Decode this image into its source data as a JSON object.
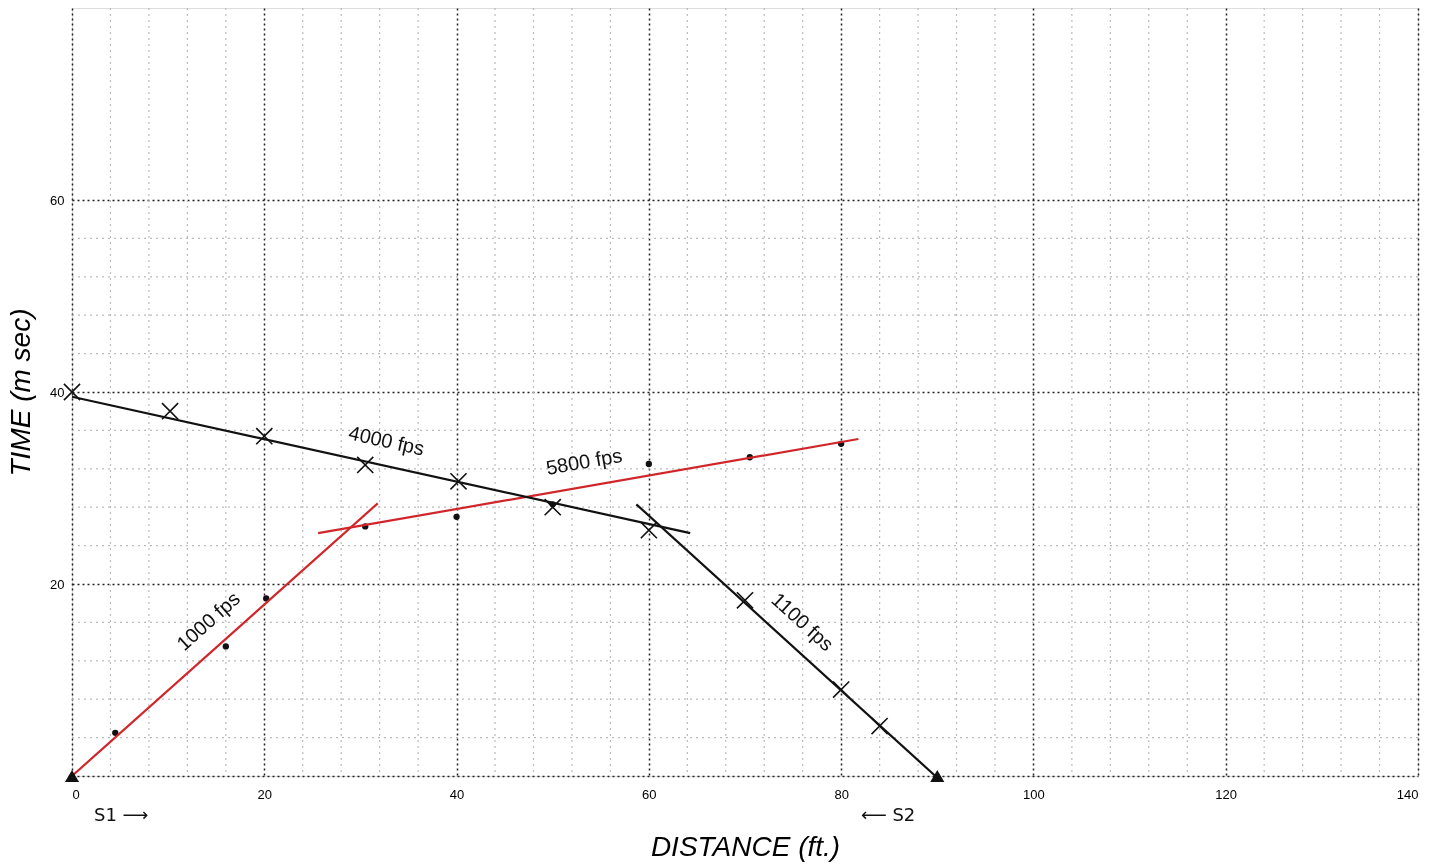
{
  "chart_data": {
    "type": "scatter",
    "xlabel": "DISTANCE (ft.)",
    "ylabel": "TIME (m sec)",
    "xlim": [
      0,
      140
    ],
    "ylim": [
      0,
      80
    ],
    "xticks": [
      0,
      20,
      40,
      60,
      80,
      100,
      120,
      140
    ],
    "yticks": [
      {
        "value": 0,
        "label": null
      },
      20,
      40,
      60
    ],
    "grid": true,
    "series": [
      {
        "marker": "cross",
        "color": "#111111",
        "x": [
          0,
          10.2,
          20,
          30.5,
          40.2,
          50,
          60,
          70,
          80,
          84
        ],
        "values": [
          40,
          38,
          35.4,
          32.4,
          30.7,
          28,
          25.6,
          18.3,
          9,
          5.2
        ]
      },
      {
        "marker": "circle",
        "color": "#111111",
        "x": [
          4.5,
          16,
          20.2,
          30.5,
          40,
          50,
          60,
          70.5,
          80
        ],
        "values": [
          4.5,
          13.5,
          18.5,
          26,
          27,
          28.3,
          32.5,
          33.2,
          34.6
        ]
      },
      {
        "type": "line",
        "name": "1000 fps",
        "color": "#d0262b",
        "x": [
          0,
          31.8
        ],
        "values": [
          0,
          28.4
        ]
      },
      {
        "type": "line",
        "name": "5800 fps",
        "color": "#d0262b",
        "x": [
          25.6,
          81.8
        ],
        "values": [
          25.3,
          35.1
        ]
      },
      {
        "type": "line",
        "name": "4000 fps",
        "color": "#111111",
        "x": [
          0,
          64.3
        ],
        "values": [
          39.5,
          25.3
        ]
      },
      {
        "type": "line",
        "name": "1100 fps",
        "color": "#111111",
        "x": [
          58.7,
          89.8
        ],
        "values": [
          28.3,
          0
        ]
      },
      {
        "marker": "triangle",
        "color": "#111111",
        "x": [
          0,
          90
        ],
        "values": [
          0,
          0
        ]
      }
    ],
    "annotations": [
      "S1 ⟶",
      "⟵ S2"
    ]
  }
}
